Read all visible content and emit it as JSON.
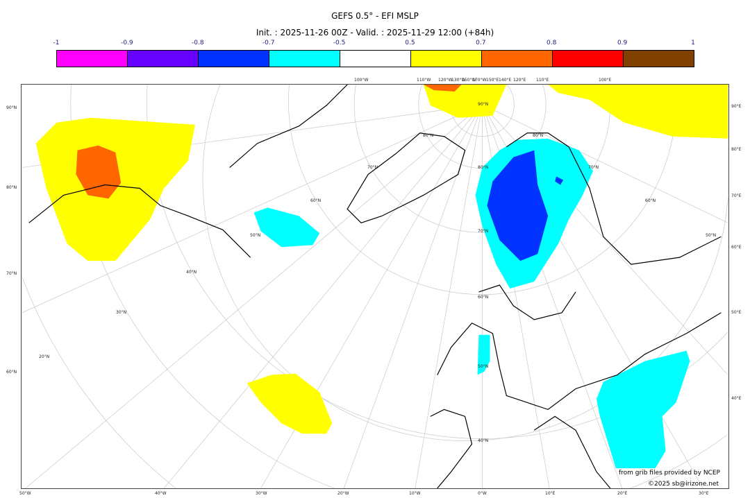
{
  "title": "GEFS 0.5° - EFI MSLP",
  "subtitle": "Init. : 2025-11-26 00Z - Valid. : 2025-11-29 12:00 (+84h)",
  "colorbar": {
    "ticks": [
      "-1",
      "-0.9",
      "-0.8",
      "-0.7",
      "-0.5",
      "0.5",
      "0.7",
      "0.8",
      "0.9",
      "1"
    ],
    "colors": [
      "#ff00ff",
      "#6600ff",
      "#0033ff",
      "#00ffff",
      "#ffffff",
      "#ffff00",
      "#ff6600",
      "#ff0000",
      "#804000"
    ]
  },
  "map": {
    "top_labels": [
      "100°W",
      "110°W",
      "120°W",
      "130°W",
      "150°W",
      "170°W",
      "150°E",
      "140°E",
      "120°E",
      "110°E",
      "100°E"
    ],
    "left_labels": [
      "90°N",
      "80°N",
      "70°N",
      "60°N"
    ],
    "right_labels": [
      "90°E",
      "80°E",
      "70°E",
      "60°E",
      "50°E",
      "40°E"
    ],
    "bottom_labels": [
      "50°W",
      "40°W",
      "30°W",
      "20°W",
      "10°W",
      "0°W",
      "10°E",
      "20°E",
      "30°E"
    ],
    "inner_labels": [
      "90°N",
      "80°N",
      "80°N",
      "80°N",
      "70°N",
      "70°N",
      "70°N",
      "60°N",
      "60°N",
      "60°N",
      "50°N",
      "50°N",
      "50°N",
      "40°N",
      "40°N",
      "30°N",
      "20°N"
    ]
  },
  "credits": {
    "source": "from grib files provided by NCEP",
    "copyright": "©2025 sb@irizone.net"
  }
}
